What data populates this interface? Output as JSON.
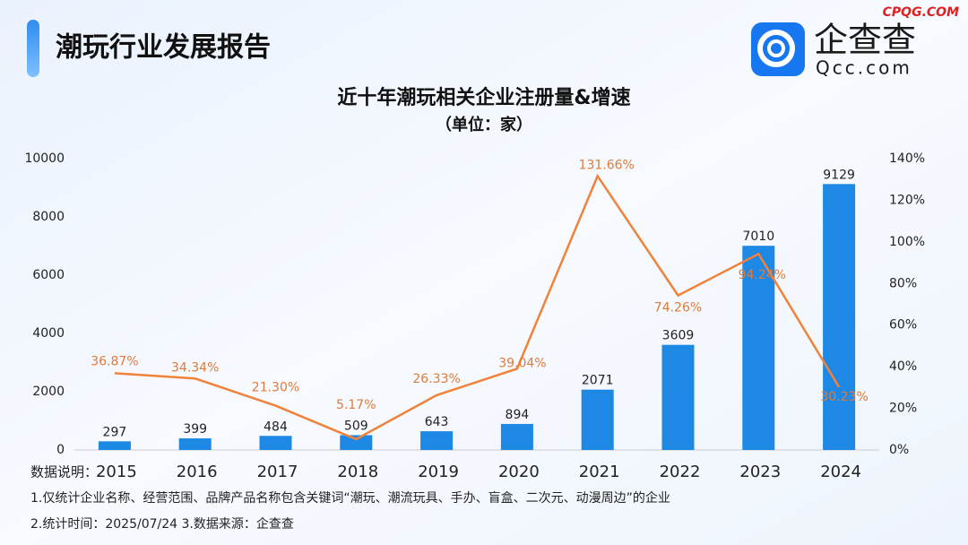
{
  "header": {
    "title": "潮玩行业发展报告",
    "logo_name": "企查查",
    "logo_site": "Qcc.com",
    "watermark": "CPQG.COM"
  },
  "chart_data": {
    "type": "bar-line",
    "title": "近十年潮玩相关企业注册量&增速",
    "subtitle": "（单位：家）",
    "categories": [
      "2015",
      "2016",
      "2017",
      "2018",
      "2019",
      "2020",
      "2021",
      "2022",
      "2023",
      "2024"
    ],
    "series": [
      {
        "name": "企业注册量",
        "type": "bar",
        "color": "#1e88e5",
        "values": [
          297,
          399,
          484,
          509,
          643,
          894,
          2071,
          3609,
          7010,
          9129
        ]
      },
      {
        "name": "增速",
        "type": "line",
        "axis": "y2",
        "color": "#f0823a",
        "values": [
          36.87,
          34.34,
          21.3,
          5.17,
          26.33,
          39.04,
          131.66,
          74.26,
          94.24,
          30.23
        ],
        "value_labels": [
          "36.87%",
          "34.34%",
          "21.30%",
          "5.17%",
          "26.33%",
          "39.04%",
          "131.66%",
          "74.26%",
          "94.24%",
          "30.23%"
        ]
      }
    ],
    "ylim": [
      0,
      10000
    ],
    "yticks": [
      0,
      2000,
      4000,
      6000,
      8000,
      10000
    ],
    "y2lim": [
      0,
      140
    ],
    "y2ticks": [
      {
        "value": 0,
        "label": "0%"
      },
      {
        "value": 20,
        "label": "20%"
      },
      {
        "value": 40,
        "label": "40%"
      },
      {
        "value": 60,
        "label": "60%"
      },
      {
        "value": 80,
        "label": "80%"
      },
      {
        "value": 100,
        "label": "100%"
      },
      {
        "value": 120,
        "label": "120%"
      },
      {
        "value": 140,
        "label": "140%"
      }
    ],
    "grid": false
  },
  "notes": {
    "label": "数据说明：",
    "lines": [
      "1.仅统计企业名称、经营范围、品牌产品名称包含关键词“潮玩、潮流玩具、手办、盲盒、二次元、动漫周边”的企业",
      "2.统计时间：2025/07/24   3.数据来源：企查查"
    ]
  }
}
